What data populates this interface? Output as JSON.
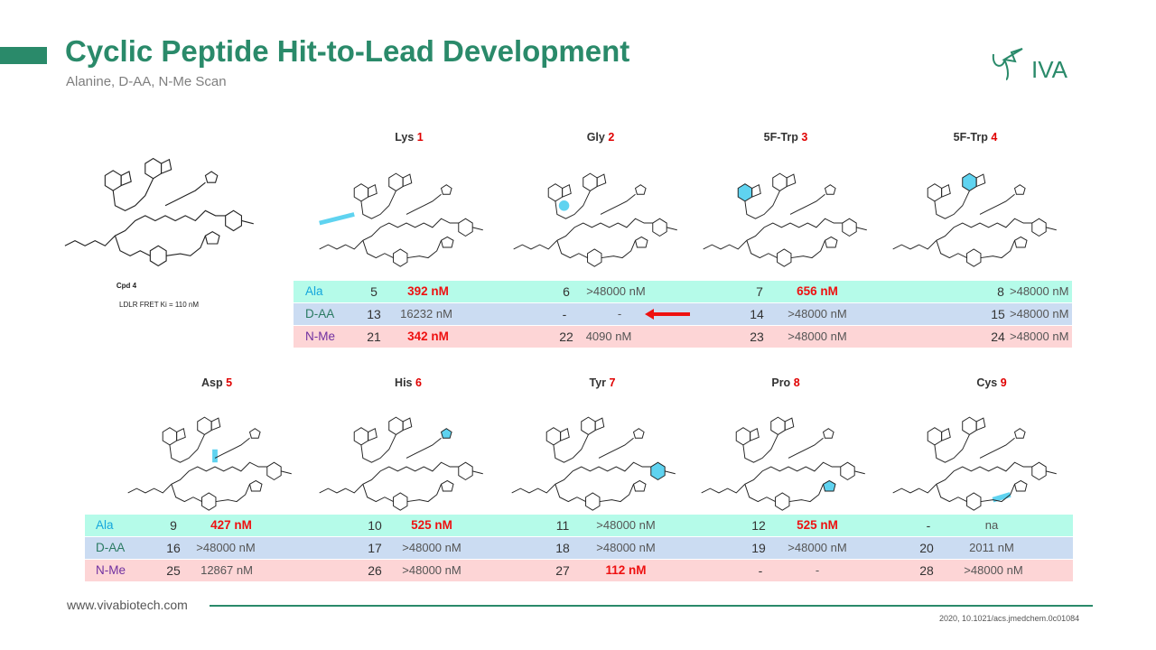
{
  "header": {
    "title": "Cyclic Peptide Hit-to-Lead Development",
    "subtitle": "Alanine, D-AA, N-Me Scan",
    "logo_text": "VIVA"
  },
  "reference_compound": {
    "name": "Cpd 4",
    "assay": "LDLR FRET Ki = 110 nM"
  },
  "row_labels": {
    "ala": "Ala",
    "daa": "D-AA",
    "nme": "N-Me"
  },
  "colors": {
    "brand": "#2a8a6a",
    "hit": "#ee1111",
    "ala_bg": "#b5fbe9",
    "daa_bg": "#cbdcf2",
    "nme_bg": "#fdd5d6",
    "highlight": "#5fd3f0"
  },
  "panel1": {
    "positions": [
      {
        "residue": "Lys",
        "index": "1",
        "ala": {
          "cpd": "5",
          "value": "392 nM"
        },
        "daa": {
          "cpd": "13",
          "value": "16232 nM"
        },
        "nme": {
          "cpd": "21",
          "value": "342 nM"
        }
      },
      {
        "residue": "Gly",
        "index": "2",
        "ala": {
          "cpd": "6",
          "value": ">48000 nM"
        },
        "daa": {
          "cpd": "-",
          "value": "-"
        },
        "nme": {
          "cpd": "22",
          "value": "4090 nM"
        }
      },
      {
        "residue": "5F-Trp",
        "index": "3",
        "ala": {
          "cpd": "7",
          "value": "656 nM"
        },
        "daa": {
          "cpd": "14",
          "value": ">48000 nM"
        },
        "nme": {
          "cpd": "23",
          "value": ">48000 nM"
        }
      },
      {
        "residue": "5F-Trp",
        "index": "4",
        "ala": {
          "cpd": "8",
          "value": ">48000 nM"
        },
        "daa": {
          "cpd": "15",
          "value": ">48000 nM"
        },
        "nme": {
          "cpd": "24",
          "value": ">48000 nM"
        }
      }
    ]
  },
  "panel2": {
    "positions": [
      {
        "residue": "Asp",
        "index": "5",
        "ala": {
          "cpd": "9",
          "value": "427 nM"
        },
        "daa": {
          "cpd": "16",
          "value": ">48000 nM"
        },
        "nme": {
          "cpd": "25",
          "value": "12867 nM"
        }
      },
      {
        "residue": "His",
        "index": "6",
        "ala": {
          "cpd": "10",
          "value": "525 nM"
        },
        "daa": {
          "cpd": "17",
          "value": ">48000 nM"
        },
        "nme": {
          "cpd": "26",
          "value": ">48000 nM"
        }
      },
      {
        "residue": "Tyr",
        "index": "7",
        "ala": {
          "cpd": "11",
          "value": ">48000 nM"
        },
        "daa": {
          "cpd": "18",
          "value": ">48000 nM"
        },
        "nme": {
          "cpd": "27",
          "value": "112 nM"
        }
      },
      {
        "residue": "Pro",
        "index": "8",
        "ala": {
          "cpd": "12",
          "value": "525 nM"
        },
        "daa": {
          "cpd": "19",
          "value": ">48000 nM"
        },
        "nme": {
          "cpd": "-",
          "value": "-"
        }
      },
      {
        "residue": "Cys",
        "index": "9",
        "ala": {
          "cpd": "-",
          "value": "na"
        },
        "daa": {
          "cpd": "20",
          "value": "2011 nM"
        },
        "nme": {
          "cpd": "28",
          "value": ">48000 nM"
        }
      }
    ]
  },
  "footer": {
    "url": "www.vivabiotech.com",
    "citation": "2020, 10.1021/acs.jmedchem.0c01084"
  }
}
